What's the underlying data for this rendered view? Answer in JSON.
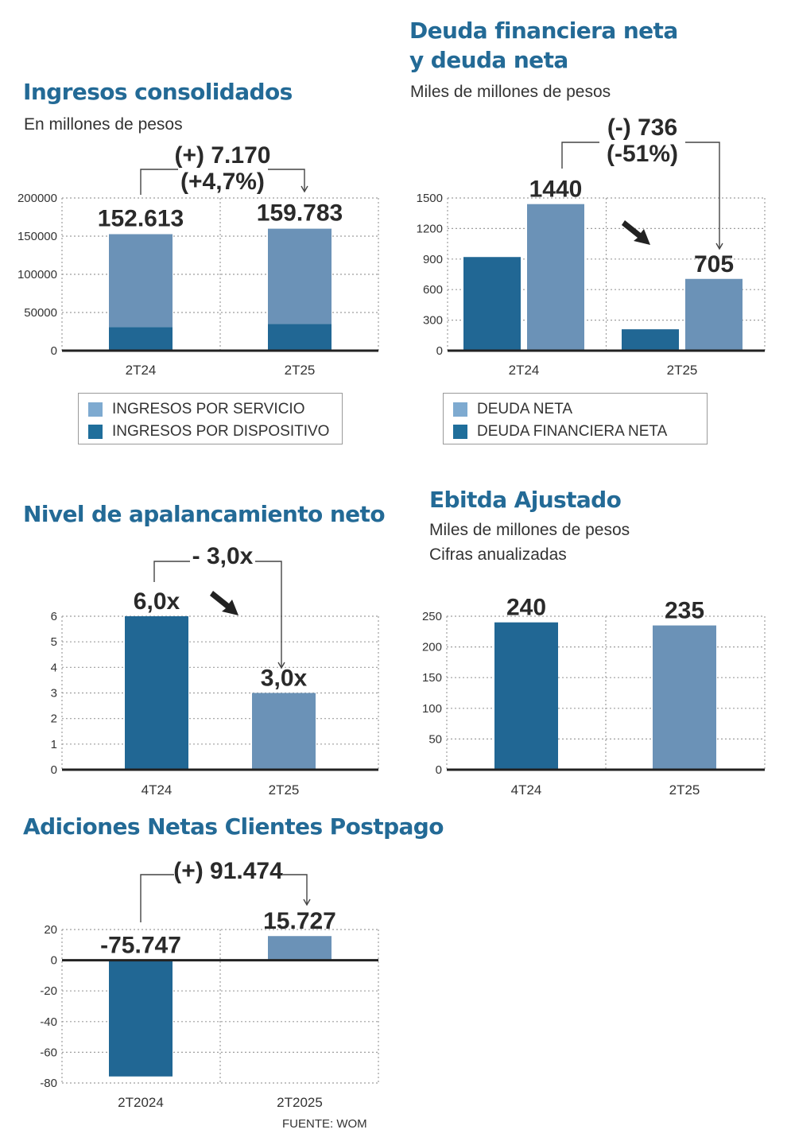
{
  "colors": {
    "dark": "#216794",
    "light": "#6b92b7",
    "dark_swatch": "#1f6e9b",
    "light_swatch": "#7eaad0",
    "title": "#236a96"
  },
  "source": "FUENTE: WOM",
  "chart_data": [
    {
      "id": "ingresos",
      "type": "bar",
      "stacked": true,
      "title": "Ingresos consolidados",
      "subtitle": [
        "En millones de pesos"
      ],
      "categories": [
        "2T24",
        "2T25"
      ],
      "series": [
        {
          "name": "INGRESOS POR DISPOSITIVO",
          "color": "dark",
          "values": [
            31000,
            35000
          ]
        },
        {
          "name": "INGRESOS POR SERVICIO",
          "color": "light",
          "values": [
            121613,
            124783
          ]
        }
      ],
      "totals_labels": [
        "152.613",
        "159.783"
      ],
      "totals": [
        152613,
        159783
      ],
      "ylim": [
        0,
        200000
      ],
      "yticks": [
        0,
        50000,
        100000,
        150000,
        200000
      ],
      "ytick_labels": [
        "0",
        "50000",
        "100000",
        "150000",
        "200000"
      ],
      "annotation": [
        "(+) 7.170",
        "(+4,7%)"
      ],
      "legend": [
        {
          "label": "INGRESOS POR SERVICIO",
          "color": "light"
        },
        {
          "label": "INGRESOS POR DISPOSITIVO",
          "color": "dark"
        }
      ],
      "grid": true,
      "legend_position": "bottom"
    },
    {
      "id": "deuda",
      "type": "bar",
      "grouped": true,
      "title": "Deuda financiera neta y deuda neta",
      "title_lines": [
        "Deuda financiera neta",
        "y deuda neta"
      ],
      "subtitle": [
        "Miles de millones de pesos"
      ],
      "categories": [
        "2T24",
        "2T25"
      ],
      "series": [
        {
          "name": "DEUDA FINANCIERA NETA",
          "color": "dark",
          "values": [
            920,
            210
          ]
        },
        {
          "name": "DEUDA NETA",
          "color": "light",
          "values": [
            1440,
            705
          ]
        }
      ],
      "value_labels": {
        "DEUDA NETA": [
          "1440",
          "705"
        ]
      },
      "ylim": [
        0,
        1500
      ],
      "yticks": [
        0,
        300,
        600,
        900,
        1200,
        1500
      ],
      "ytick_labels": [
        "0",
        "300",
        "600",
        "900",
        "1200",
        "1500"
      ],
      "annotation": [
        "(-) 736",
        "(-51%)"
      ],
      "legend": [
        {
          "label": "DEUDA NETA",
          "color": "light"
        },
        {
          "label": "DEUDA FINANCIERA NETA",
          "color": "dark"
        }
      ],
      "grid": true,
      "legend_position": "bottom"
    },
    {
      "id": "apalancamiento",
      "type": "bar",
      "title": "Nivel de apalancamiento neto",
      "subtitle": [],
      "categories": [
        "4T24",
        "2T25"
      ],
      "values": [
        6.0,
        3.0
      ],
      "colors": [
        "dark",
        "light"
      ],
      "value_labels": [
        "6,0x",
        "3,0x"
      ],
      "ylim": [
        0,
        6
      ],
      "yticks": [
        0,
        1,
        2,
        3,
        4,
        5,
        6
      ],
      "ytick_labels": [
        "0",
        "1",
        "2",
        "3",
        "4",
        "5",
        "6"
      ],
      "annotation": [
        "- 3,0x"
      ],
      "grid": true
    },
    {
      "id": "ebitda",
      "type": "bar",
      "title": "Ebitda Ajustado",
      "subtitle": [
        "Miles de millones de pesos",
        "Cifras anualizadas"
      ],
      "categories": [
        "4T24",
        "2T25"
      ],
      "values": [
        240,
        235
      ],
      "colors": [
        "dark",
        "light"
      ],
      "value_labels": [
        "240",
        "235"
      ],
      "ylim": [
        0,
        250
      ],
      "yticks": [
        0,
        50,
        100,
        150,
        200,
        250
      ],
      "ytick_labels": [
        "0",
        "50",
        "100",
        "150",
        "200",
        "250"
      ],
      "grid": true
    },
    {
      "id": "postpago",
      "type": "bar",
      "title": "Adiciones Netas Clientes Postpago",
      "subtitle": [],
      "categories": [
        "2T2024",
        "2T2025"
      ],
      "values": [
        -75.747,
        15.727
      ],
      "colors": [
        "dark",
        "light"
      ],
      "value_labels": [
        "-75.747",
        "15.727"
      ],
      "ylim": [
        -80,
        20
      ],
      "yticks": [
        -80,
        -60,
        -40,
        -20,
        0,
        20
      ],
      "ytick_labels": [
        "-80",
        "-60",
        "-40",
        "-20",
        "0",
        "20"
      ],
      "annotation": [
        "(+) 91.474"
      ],
      "grid": true
    }
  ]
}
